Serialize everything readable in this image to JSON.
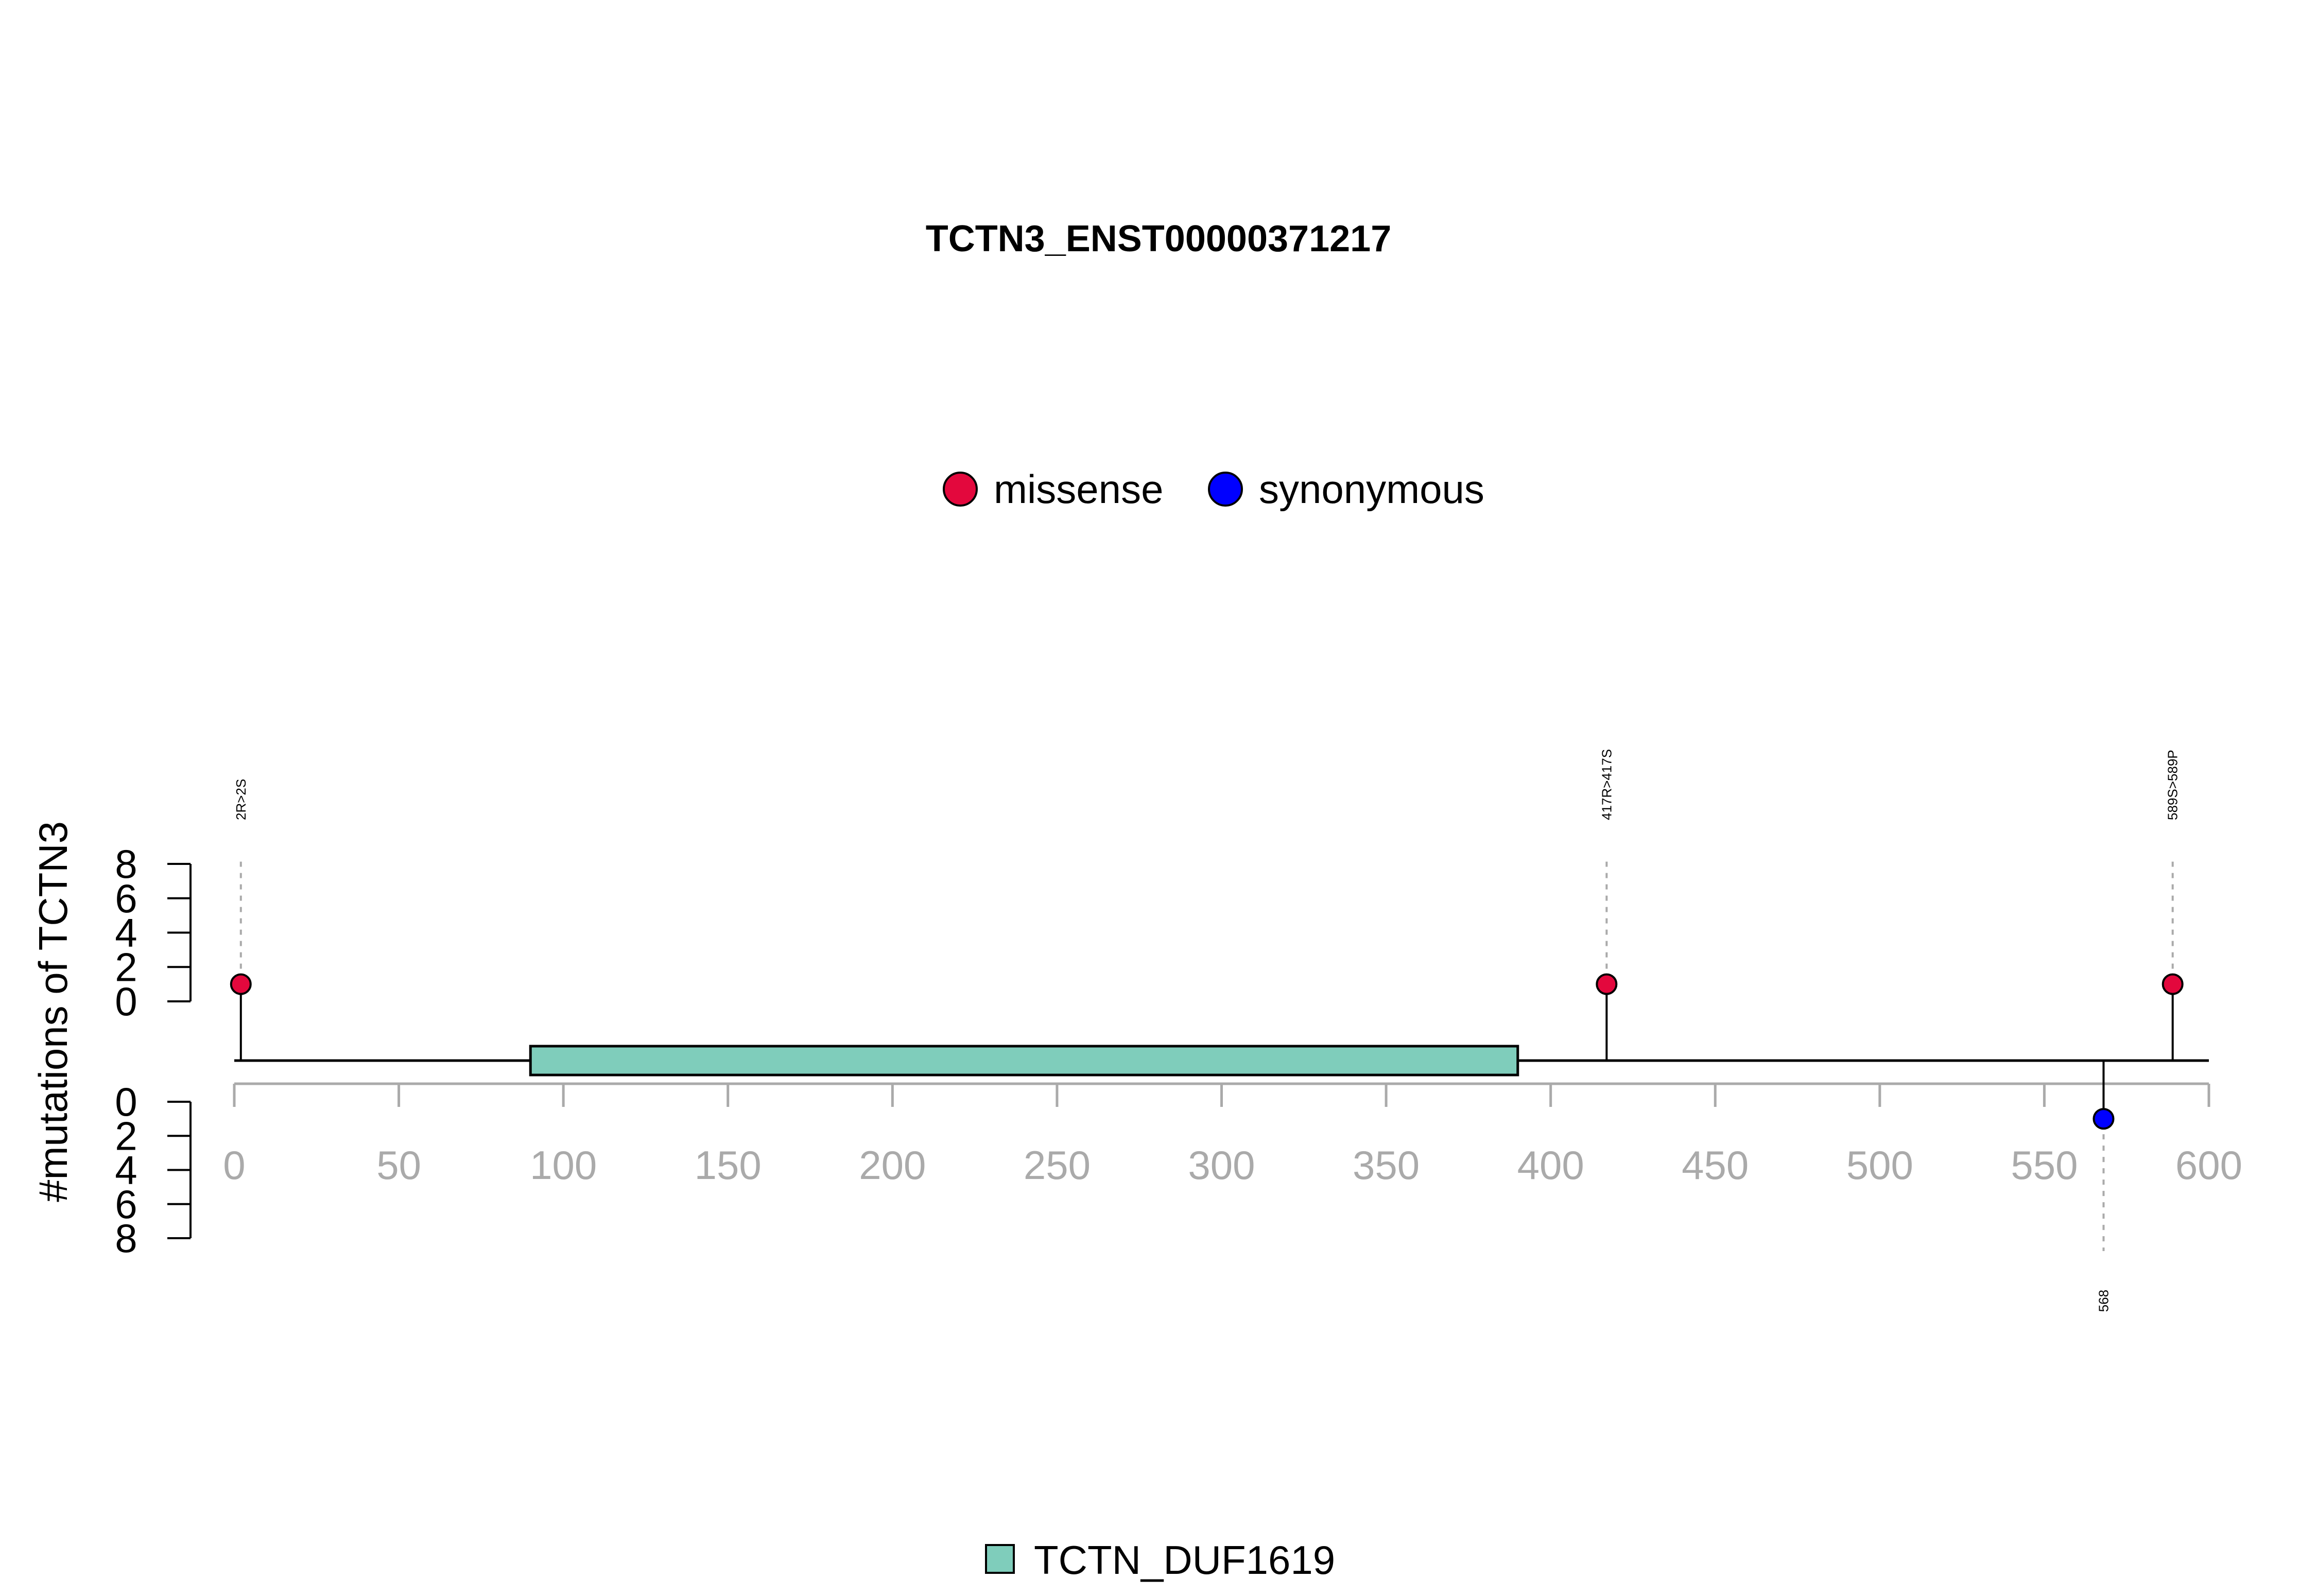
{
  "chart_data": {
    "type": "lollipop",
    "title": "TCTN3_ENST00000371217",
    "ylabel": "#mutations of TCTN3",
    "xlim": [
      0,
      600
    ],
    "x_ticks": [
      "0",
      "50",
      "100",
      "150",
      "200",
      "250",
      "300",
      "350",
      "400",
      "450",
      "500",
      "550",
      "600"
    ],
    "ylim": [
      0,
      8
    ],
    "y_ticks": [
      "0",
      "2",
      "4",
      "6",
      "8"
    ],
    "grid": false,
    "legend": {
      "placement": "top-center",
      "items": [
        {
          "label": "missense",
          "color": "#E3083D"
        },
        {
          "label": "synonymous",
          "color": "#0000FF"
        }
      ]
    },
    "domains": [
      {
        "name": "TCTN_DUF1619",
        "start": 90,
        "end": 390,
        "color": "#7FCDBB"
      }
    ],
    "domain_legend": {
      "placement": "bottom-center"
    },
    "mutations": [
      {
        "position": 2,
        "count": 1,
        "type": "missense",
        "side": "top",
        "label": "2R>2S"
      },
      {
        "position": 417,
        "count": 1,
        "type": "missense",
        "side": "top",
        "label": "417R>417S"
      },
      {
        "position": 589,
        "count": 1,
        "type": "missense",
        "side": "top",
        "label": "589S>589P"
      },
      {
        "position": 568,
        "count": 1,
        "type": "synonymous",
        "side": "bottom",
        "label": "568"
      }
    ],
    "colors": {
      "missense": "#E3083D",
      "synonymous": "#0000FF",
      "axis": "#aaaaaa",
      "connector": "#aaaaaa"
    }
  }
}
